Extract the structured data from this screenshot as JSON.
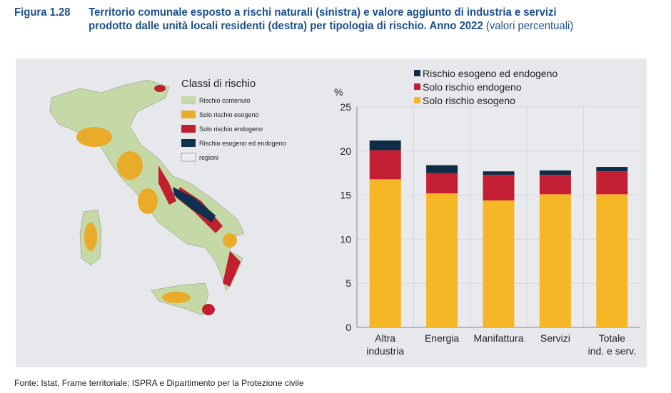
{
  "title": {
    "number": "Figura 1.28",
    "line1": "Territorio comunale esposto a rischi naturali (sinistra) e valore aggiunto di industria e servizi",
    "line2": "prodotto dalle unità locali residenti (destra) per tipologia di rischio. Anno 2022",
    "unit": "(valori percentuali)"
  },
  "map": {
    "legend_title": "Classi di rischio",
    "legend": [
      {
        "label": "Rischio contenuto",
        "color": "#c5d9a6"
      },
      {
        "label": "Solo rischio esogeno",
        "color": "#e9ac2a"
      },
      {
        "label": "Solo rischio endogeno",
        "color": "#c0202e"
      },
      {
        "label": "Rischio esogeno ed endogeno",
        "color": "#10304f"
      },
      {
        "label": "regioni",
        "color": "#eceeee"
      }
    ]
  },
  "chart_data": {
    "type": "bar",
    "stacked": true,
    "categories": [
      "Altra industria",
      "Energia",
      "Manifattura",
      "Servizi",
      "Totale ind. e serv."
    ],
    "series": [
      {
        "name": "Solo rischio esogeno",
        "color": "#f6b727",
        "values": [
          16.8,
          15.2,
          14.4,
          15.1,
          15.1
        ]
      },
      {
        "name": "Solo rischio endogeno",
        "color": "#c41e35",
        "values": [
          3.3,
          2.3,
          2.9,
          2.2,
          2.6
        ]
      },
      {
        "name": "Rischio esogeno ed endogeno",
        "color": "#0f2c46",
        "values": [
          1.1,
          0.9,
          0.4,
          0.5,
          0.5
        ]
      }
    ],
    "ylabel": "%",
    "ylim": [
      0,
      25
    ],
    "yticks": [
      0,
      5,
      10,
      15,
      20,
      25
    ],
    "grid": true,
    "legend_position": "top"
  },
  "source": "Fonte: Istat, Frame territoriale; ISPRA e Dipartimento per la Protezione civile"
}
